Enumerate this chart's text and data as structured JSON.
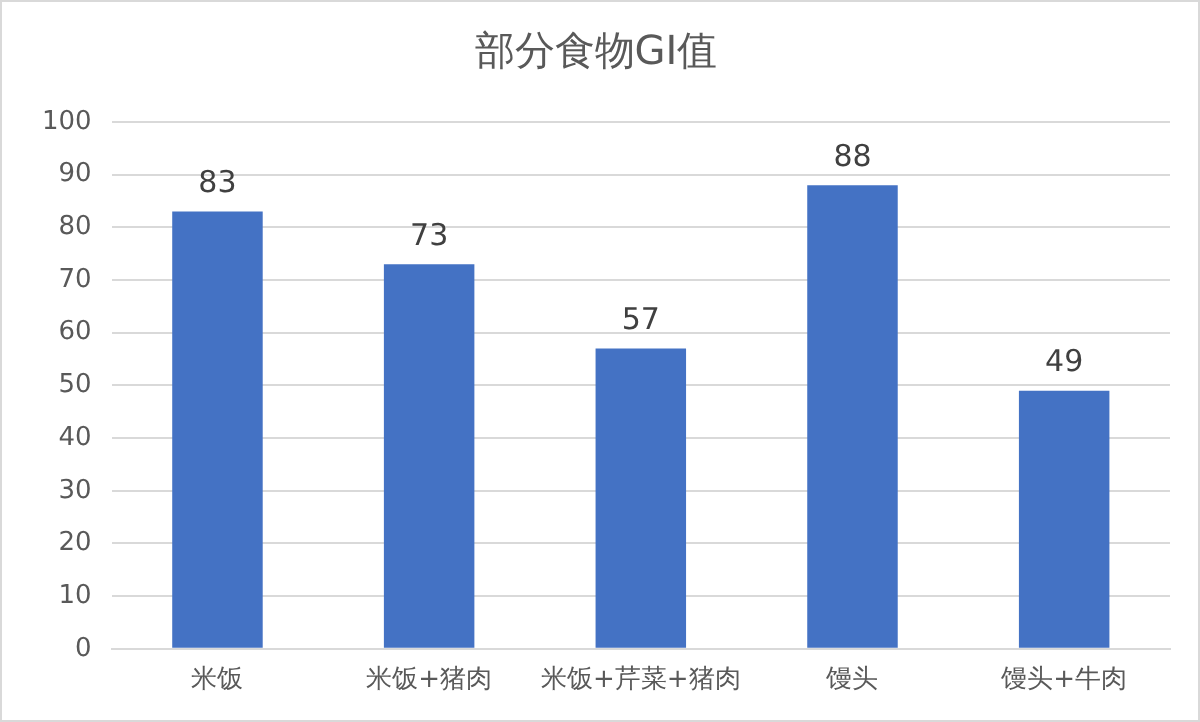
{
  "chart_data": {
    "type": "bar",
    "title": "部分食物GI值",
    "categories": [
      "米饭",
      "米饭+猪肉",
      "米饭+芹菜+猪肉",
      "馒头",
      "馒头+牛肉"
    ],
    "values": [
      83,
      73,
      57,
      88,
      49
    ],
    "color": "#4472c4",
    "ylim": [
      0,
      100
    ],
    "yticks": [
      0,
      10,
      20,
      30,
      40,
      50,
      60,
      70,
      80,
      90,
      100
    ],
    "grid": "y",
    "data_labels": true,
    "legend": false
  }
}
